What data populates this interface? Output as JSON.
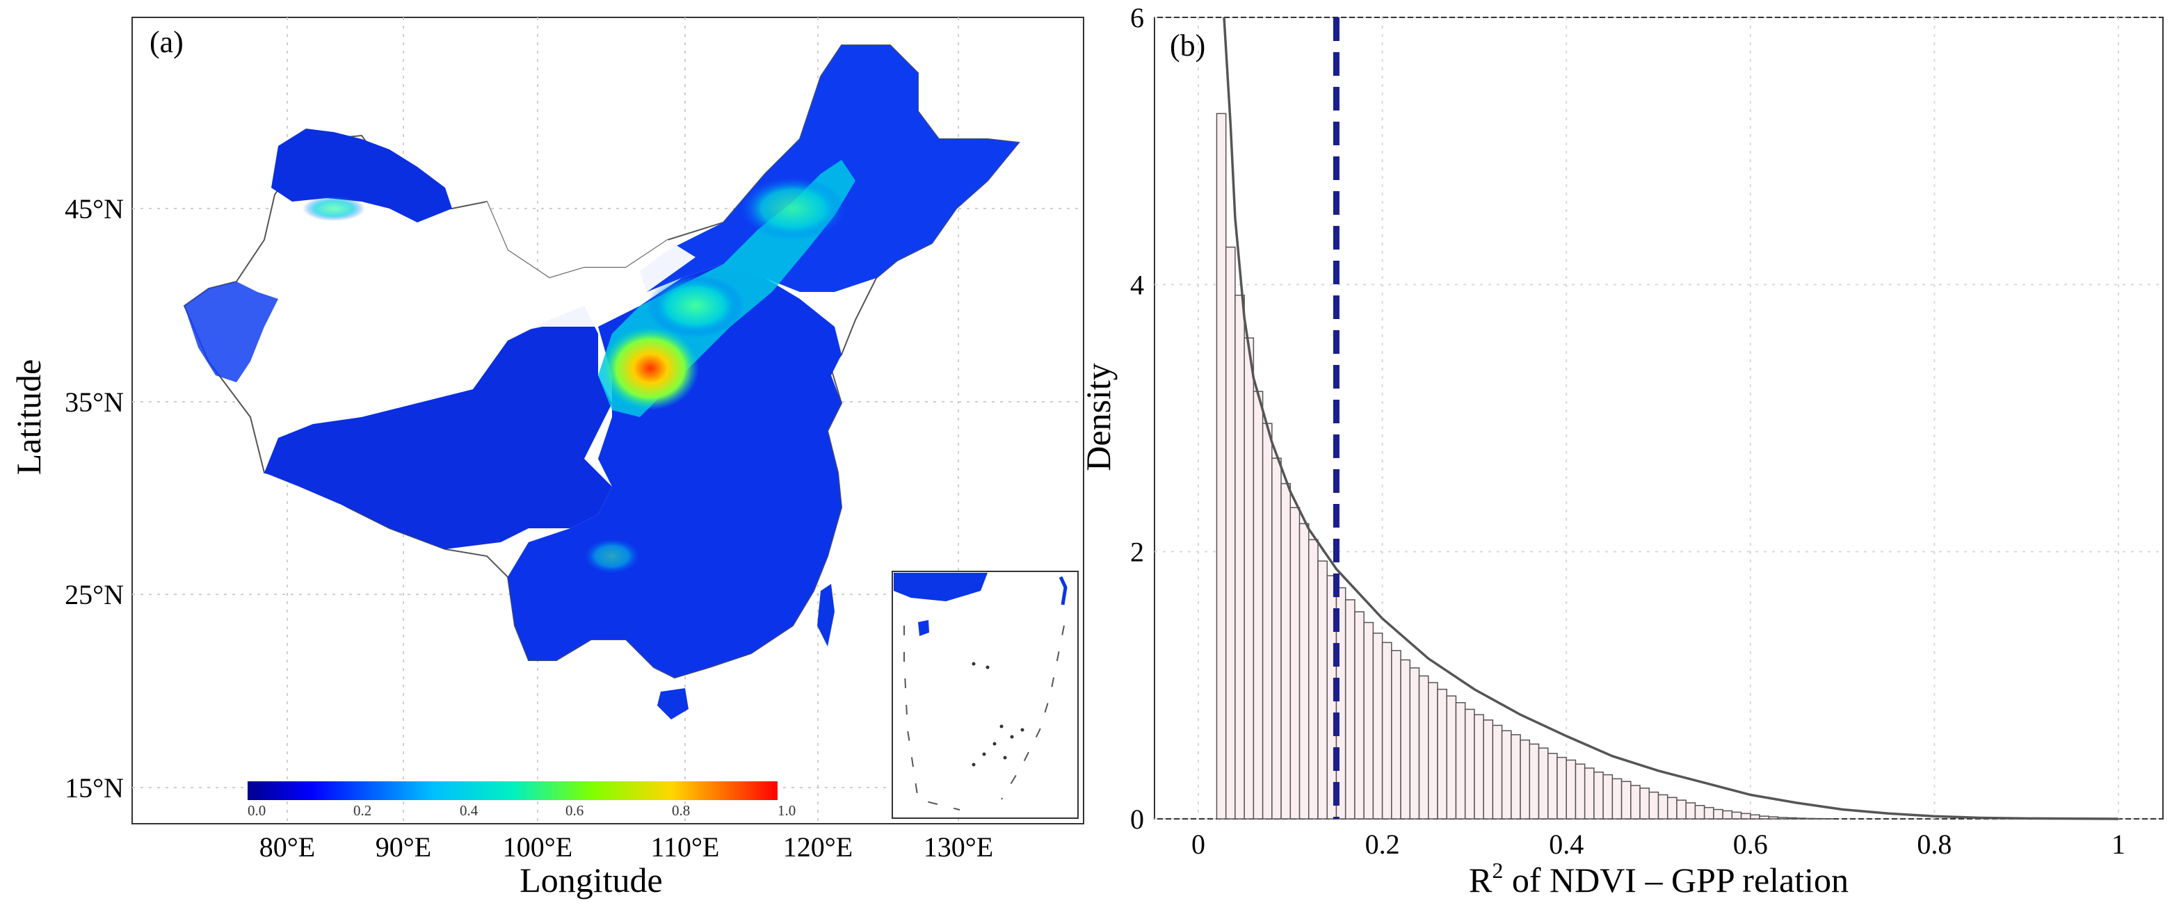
{
  "panel_a": {
    "label": "(a)",
    "xlabel": "Longitude",
    "ylabel": "Latitude",
    "x_ticks": [
      "80°E",
      "90°E",
      "100°E",
      "110°E",
      "120°E",
      "130°E"
    ],
    "y_ticks": [
      "45°N",
      "35°N",
      "25°N",
      "15°N"
    ],
    "colorbar_ticks": [
      "0.0",
      "0.2",
      "0.4",
      "0.6",
      "0.8",
      "1.0"
    ],
    "colors": {
      "low": "#0000c8",
      "mid": "#00e0e0",
      "high": "#ff0000",
      "boundary": "#555555"
    }
  },
  "chart_data": {
    "type": "bar",
    "title": "",
    "label": "(b)",
    "xlabel_prefix": "R",
    "xlabel_sup": "2",
    "xlabel_suffix": " of NDVI – GPP relation",
    "ylabel": "Density",
    "xlim": [
      0,
      1.05
    ],
    "ylim": [
      0,
      6
    ],
    "x_ticks": [
      0,
      0.2,
      0.4,
      0.6,
      0.8,
      1
    ],
    "x_tick_labels": [
      "0",
      "0.2",
      "0.4",
      "0.6",
      "0.8",
      "1"
    ],
    "y_ticks": [
      0,
      2,
      4,
      6
    ],
    "y_tick_labels": [
      "0",
      "2",
      "4",
      "6"
    ],
    "bin_width": 0.01,
    "bin_start": 0.02,
    "bar_values": [
      5.28,
      4.28,
      3.92,
      3.6,
      3.2,
      2.96,
      2.7,
      2.51,
      2.33,
      2.21,
      2.09,
      1.93,
      1.82,
      1.73,
      1.64,
      1.55,
      1.47,
      1.39,
      1.32,
      1.26,
      1.19,
      1.13,
      1.07,
      1.02,
      0.97,
      0.92,
      0.87,
      0.82,
      0.78,
      0.74,
      0.7,
      0.66,
      0.63,
      0.59,
      0.56,
      0.53,
      0.49,
      0.46,
      0.44,
      0.41,
      0.38,
      0.35,
      0.33,
      0.3,
      0.28,
      0.25,
      0.23,
      0.2,
      0.18,
      0.16,
      0.14,
      0.12,
      0.1,
      0.085,
      0.07,
      0.06,
      0.05,
      0.04,
      0.03,
      0.02,
      0.015,
      0.01,
      0.008,
      0.005,
      0.003,
      0.002,
      0.001
    ],
    "density_curve": {
      "x": [
        0.028,
        0.035,
        0.04,
        0.05,
        0.06,
        0.08,
        0.1,
        0.12,
        0.15,
        0.2,
        0.25,
        0.3,
        0.35,
        0.4,
        0.45,
        0.5,
        0.55,
        0.6,
        0.65,
        0.7,
        0.75,
        0.8,
        0.85,
        0.9,
        1.0
      ],
      "y": [
        6.0,
        5.2,
        4.5,
        3.75,
        3.3,
        2.82,
        2.45,
        2.17,
        1.87,
        1.5,
        1.2,
        0.97,
        0.78,
        0.62,
        0.47,
        0.36,
        0.27,
        0.18,
        0.12,
        0.07,
        0.04,
        0.02,
        0.008,
        0.003,
        0.0
      ]
    },
    "median_line": 0.15,
    "colors": {
      "bar_fill": "#fbeef0",
      "bar_edge": "#555555",
      "curve": "#555555",
      "median": "#1a1f8c",
      "grid": "#d9d9d9"
    }
  }
}
